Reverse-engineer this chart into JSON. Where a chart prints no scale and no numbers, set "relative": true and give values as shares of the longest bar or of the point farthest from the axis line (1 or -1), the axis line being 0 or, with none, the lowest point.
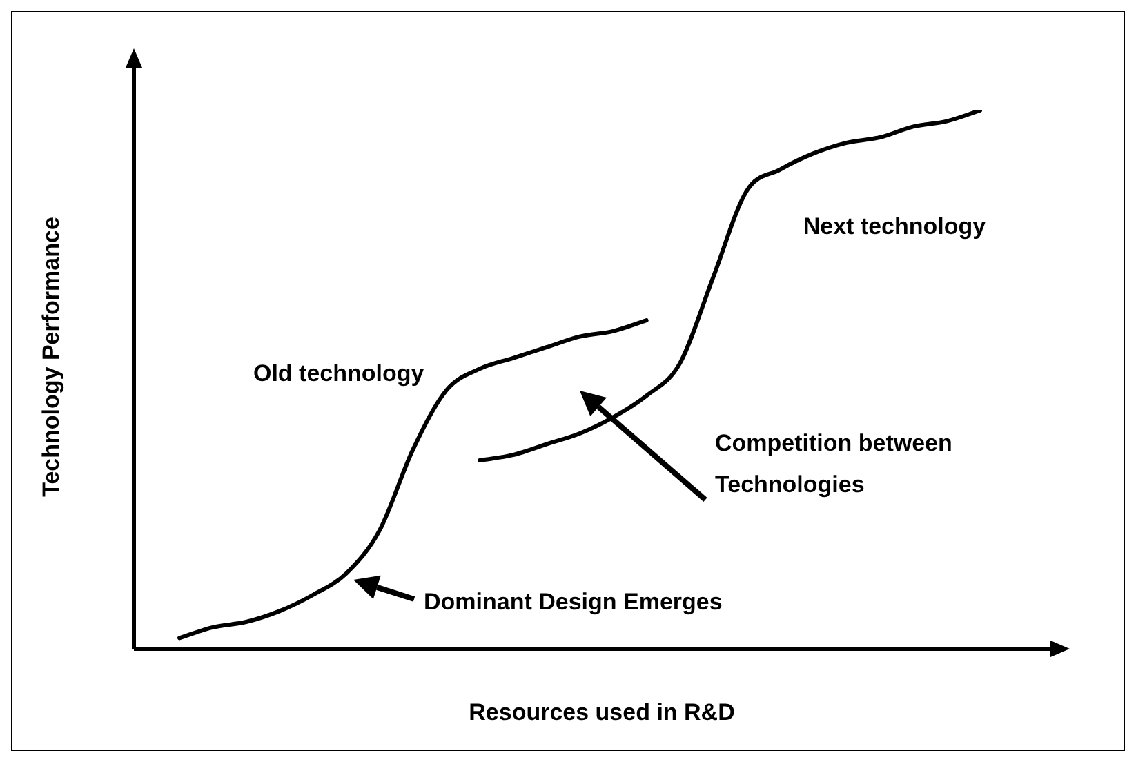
{
  "chart_data": {
    "type": "line",
    "relative": true,
    "xlabel": "Resources used in R&D",
    "ylabel": "Technology Performance",
    "categories": [
      null,
      null,
      null,
      null,
      null,
      null,
      null,
      null,
      null,
      null,
      null,
      null,
      null,
      null,
      null,
      null,
      null,
      null,
      null,
      null,
      null,
      null,
      null,
      null,
      null
    ],
    "series": [
      {
        "name": "Old technology",
        "color": "#000000",
        "values": [
          0.02,
          0.04,
          0.05,
          0.07,
          0.1,
          0.14,
          0.22,
          0.37,
          0.48,
          0.52,
          0.54,
          0.56,
          0.58,
          0.59,
          0.61,
          null,
          null,
          null,
          null,
          null,
          null,
          null,
          null,
          null,
          null
        ]
      },
      {
        "name": "Next technology",
        "color": "#000000",
        "values": [
          null,
          null,
          null,
          null,
          null,
          null,
          null,
          null,
          null,
          0.35,
          0.36,
          0.38,
          0.4,
          0.43,
          0.47,
          0.53,
          0.69,
          0.85,
          0.89,
          0.92,
          0.94,
          0.95,
          0.97,
          0.98,
          1.0
        ]
      }
    ],
    "annotations": [
      "Competition between Technologies",
      "Dominant Design Emerges"
    ],
    "legend": false,
    "marker": "none",
    "line_style": "solid"
  }
}
